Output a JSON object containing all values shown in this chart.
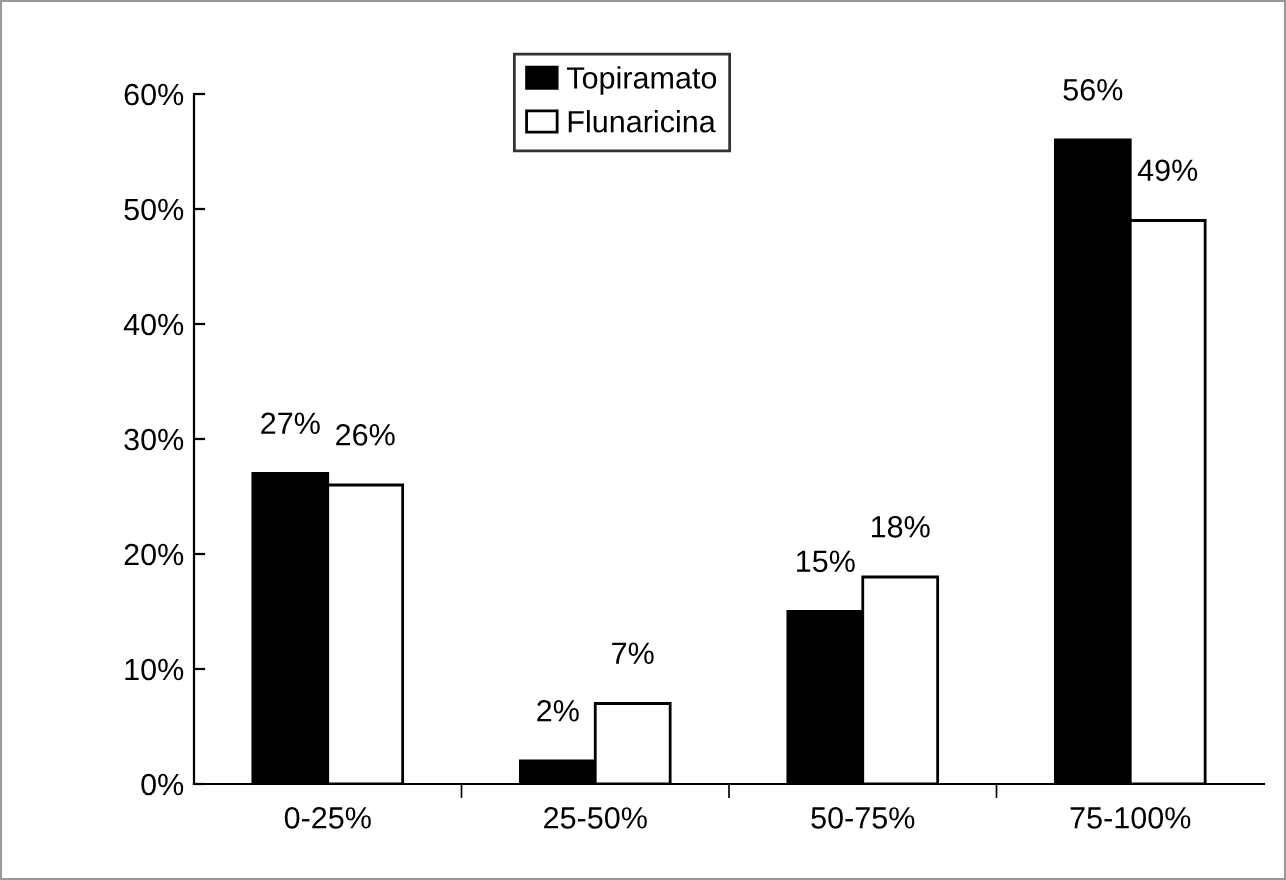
{
  "chart_data": {
    "type": "bar",
    "categories": [
      "0-25%",
      "25-50%",
      "50-75%",
      "75-100%"
    ],
    "series": [
      {
        "name": "Topiramato",
        "color": "#000000",
        "values": [
          27,
          2,
          15,
          56
        ],
        "value_labels": [
          "27%",
          "2%",
          "15%",
          "56%"
        ]
      },
      {
        "name": "Flunaricina",
        "color": "#ffffff",
        "values": [
          26,
          7,
          18,
          49
        ],
        "value_labels": [
          "26%",
          "7%",
          "18%",
          "49%"
        ]
      }
    ],
    "ylim": [
      0,
      60
    ],
    "yticks": [
      {
        "value": 0,
        "label": "0%"
      },
      {
        "value": 10,
        "label": "10%"
      },
      {
        "value": 20,
        "label": "20%"
      },
      {
        "value": 30,
        "label": "30%"
      },
      {
        "value": 40,
        "label": "40%"
      },
      {
        "value": 50,
        "label": "50%"
      },
      {
        "value": 60,
        "label": "60%"
      }
    ],
    "grid": false,
    "legend": "top"
  }
}
